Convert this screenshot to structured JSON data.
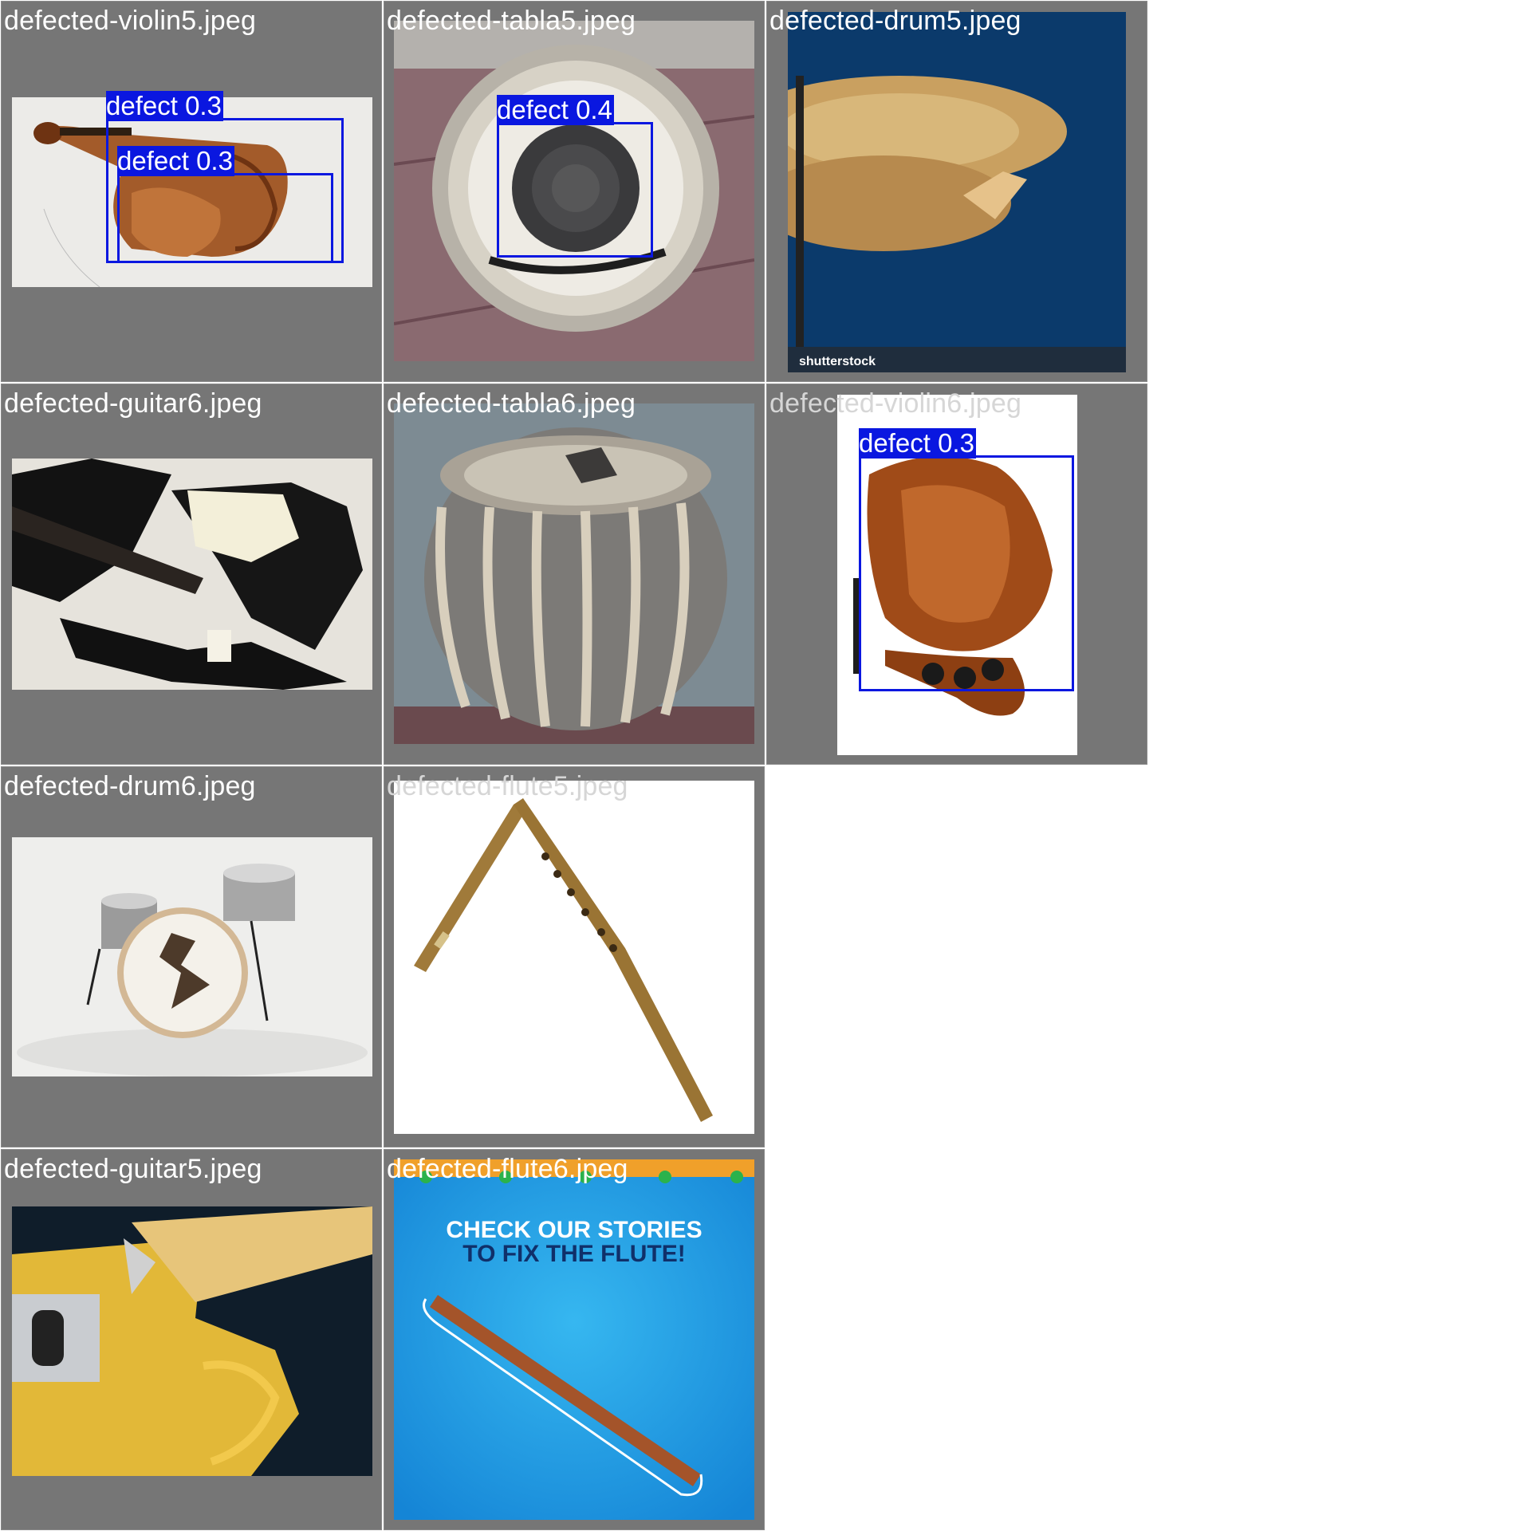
{
  "title": "",
  "tiles": [
    {
      "filename": "defected-violin5.jpeg",
      "icon": "broken-violin-photo",
      "detections": [
        {
          "label": "defect",
          "score": "0.3"
        },
        {
          "label": "defect",
          "score": "0.3"
        }
      ]
    },
    {
      "filename": "defected-tabla5.jpeg",
      "icon": "tabla-top-view-photo",
      "detections": [
        {
          "label": "defect",
          "score": "0.4"
        }
      ]
    },
    {
      "filename": "defected-drum5.jpeg",
      "icon": "cracked-cymbal-photo",
      "watermark": "shutterstock",
      "detections": []
    },
    {
      "filename": "defected-guitar6.jpeg",
      "icon": "smashed-electric-guitar-photo",
      "detections": []
    },
    {
      "filename": "defected-tabla6.jpeg",
      "icon": "torn-tabla-photo",
      "detections": []
    },
    {
      "filename": "defected-violin6.jpeg",
      "icon": "broken-violin-photo",
      "detections": [
        {
          "label": "defect",
          "score": "0.3"
        }
      ]
    },
    {
      "filename": "defected-drum6.jpeg",
      "icon": "drum-kit-cracked-bass-drum-photo",
      "detections": []
    },
    {
      "filename": "defected-flute5.jpeg",
      "icon": "broken-bamboo-flute-photo",
      "detections": []
    },
    {
      "filename": "defected-guitar5.jpeg",
      "icon": "smashed-telecaster-photo",
      "detections": []
    },
    {
      "filename": "defected-flute6.jpeg",
      "icon": "flute-poster-photo",
      "poster_line1": "CHECK OUR STORIES",
      "poster_line2": "TO FIX THE FLUTE!",
      "detections": []
    }
  ],
  "colors": {
    "tile_background": "#767676",
    "detection_box": "#0a17e0",
    "label_text": "#ffffff"
  }
}
